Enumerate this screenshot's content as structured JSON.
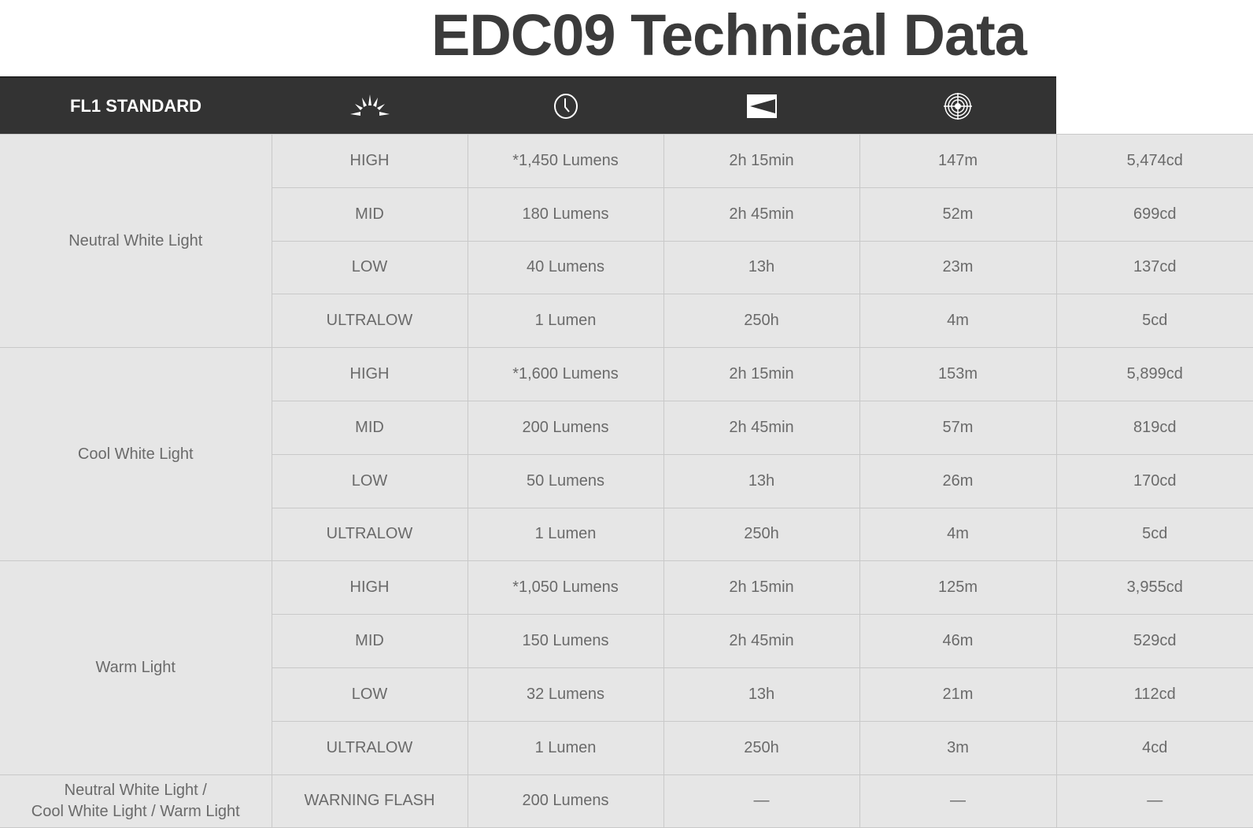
{
  "title": "EDC09 Technical Data",
  "header": {
    "standard_label": "FL1 STANDARD",
    "icons": [
      "brightness-icon",
      "runtime-clock-icon",
      "beam-distance-icon",
      "intensity-icon"
    ]
  },
  "groups": [
    {
      "label": "Neutral White Light",
      "rows": [
        {
          "mode": "HIGH",
          "output": "*1,450 Lumens",
          "runtime": "2h 15min",
          "distance": "147m",
          "intensity": "5,474cd"
        },
        {
          "mode": "MID",
          "output": "180 Lumens",
          "runtime": "2h 45min",
          "distance": "52m",
          "intensity": "699cd"
        },
        {
          "mode": "LOW",
          "output": "40 Lumens",
          "runtime": "13h",
          "distance": "23m",
          "intensity": "137cd"
        },
        {
          "mode": "ULTRALOW",
          "output": "1 Lumen",
          "runtime": "250h",
          "distance": "4m",
          "intensity": "5cd"
        }
      ]
    },
    {
      "label": "Cool White Light",
      "rows": [
        {
          "mode": "HIGH",
          "output": "*1,600 Lumens",
          "runtime": "2h 15min",
          "distance": "153m",
          "intensity": "5,899cd"
        },
        {
          "mode": "MID",
          "output": "200 Lumens",
          "runtime": "2h 45min",
          "distance": "57m",
          "intensity": "819cd"
        },
        {
          "mode": "LOW",
          "output": "50 Lumens",
          "runtime": "13h",
          "distance": "26m",
          "intensity": "170cd"
        },
        {
          "mode": "ULTRALOW",
          "output": "1 Lumen",
          "runtime": "250h",
          "distance": "4m",
          "intensity": "5cd"
        }
      ]
    },
    {
      "label": "Warm Light",
      "rows": [
        {
          "mode": "HIGH",
          "output": "*1,050 Lumens",
          "runtime": "2h 15min",
          "distance": "125m",
          "intensity": "3,955cd"
        },
        {
          "mode": "MID",
          "output": "150 Lumens",
          "runtime": "2h 45min",
          "distance": "46m",
          "intensity": "529cd"
        },
        {
          "mode": "LOW",
          "output": "32 Lumens",
          "runtime": "13h",
          "distance": "21m",
          "intensity": "112cd"
        },
        {
          "mode": "ULTRALOW",
          "output": "1 Lumen",
          "runtime": "250h",
          "distance": "3m",
          "intensity": "4cd"
        }
      ]
    },
    {
      "label": "Neutral White Light /\nCool White Light / Warm Light",
      "rows": [
        {
          "mode": "WARNING FLASH",
          "output": "200 Lumens",
          "runtime": "—",
          "distance": "—",
          "intensity": "—"
        }
      ]
    }
  ]
}
